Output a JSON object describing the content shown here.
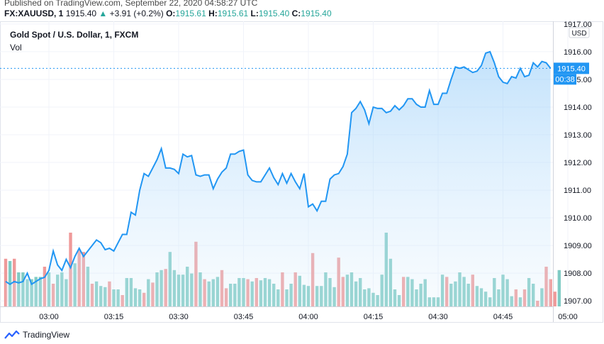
{
  "header": {
    "published": "Published on TradingView.com, September 22, 2020 04:58:27 UTC",
    "symbol": "FX:XAUUSD, 1",
    "last": "1915.40",
    "change_arrow": "▲",
    "change": "+3.91 (+0.2%)",
    "open_label": "O:",
    "open": "1915.61",
    "high_label": "H:",
    "high": "1915.61",
    "low_label": "L:",
    "low": "1915.40",
    "close_label": "C:",
    "close": "1915.40"
  },
  "chart_title": "Gold Spot / U.S. Dollar, 1, FXCM",
  "volume_label": "Vol",
  "currency_label": "USD",
  "price_tag": "1915.40",
  "countdown_tag": "00:38",
  "footer": {
    "brand": "TradingView"
  },
  "colors": {
    "line": "#2196f3",
    "area": "#bbdefb",
    "vol_up": "#80cbc4",
    "vol_down": "#ef9a9a",
    "tag": "#2196f3"
  },
  "chart_data": {
    "type": "area",
    "title": "Gold Spot / U.S. Dollar, 1, FXCM",
    "x_ticks": [
      "03:00",
      "03:15",
      "03:30",
      "03:45",
      "04:00",
      "04:15",
      "04:30",
      "04:45",
      "05:00"
    ],
    "y_ticks": [
      "1907.00",
      "1908.00",
      "1909.00",
      "1910.00",
      "1911.00",
      "1912.00",
      "1913.00",
      "1914.00",
      "1915.00",
      "1916.00",
      "1917.00"
    ],
    "ylim": [
      1906.8,
      1917.1
    ],
    "x_range_minutes": [
      -10,
      110
    ],
    "x_tick_minutes": [
      0,
      15,
      30,
      45,
      60,
      75,
      90,
      105,
      120
    ],
    "start_minute": -10,
    "grid": true,
    "price": [
      1907.7,
      1907.6,
      1907.7,
      1907.65,
      1907.7,
      1908.0,
      1907.6,
      1907.7,
      1907.8,
      1907.85,
      1908.1,
      1908.8,
      1908.3,
      1908.1,
      1908.5,
      1908.2,
      1908.6,
      1908.9,
      1908.6,
      1908.8,
      1909.0,
      1909.2,
      1909.1,
      1908.85,
      1908.9,
      1908.8,
      1909.1,
      1909.4,
      1909.4,
      1910.2,
      1910.1,
      1911.0,
      1911.6,
      1911.5,
      1911.8,
      1912.1,
      1912.5,
      1911.8,
      1911.8,
      1911.75,
      1911.6,
      1912.3,
      1912.2,
      1912.25,
      1911.55,
      1911.5,
      1911.55,
      1911.55,
      1911.05,
      1911.4,
      1911.65,
      1911.8,
      1912.3,
      1912.3,
      1912.4,
      1912.45,
      1911.55,
      1911.35,
      1911.3,
      1911.3,
      1911.55,
      1911.8,
      1911.45,
      1911.2,
      1911.6,
      1911.25,
      1911.6,
      1911.3,
      1911.05,
      1911.6,
      1910.4,
      1910.5,
      1910.25,
      1910.6,
      1910.6,
      1911.4,
      1911.55,
      1911.6,
      1911.85,
      1912.3,
      1913.8,
      1913.95,
      1914.2,
      1913.9,
      1913.4,
      1914.0,
      1913.95,
      1913.95,
      1913.8,
      1913.85,
      1914.05,
      1913.9,
      1914.05,
      1914.3,
      1914.3,
      1914.1,
      1914.0,
      1914.0,
      1914.6,
      1914.1,
      1914.1,
      1914.5,
      1914.5,
      1915.0,
      1915.45,
      1915.4,
      1915.45,
      1915.35,
      1915.25,
      1915.3,
      1915.5,
      1915.95,
      1916.0,
      1915.6,
      1915.1,
      1914.9,
      1914.85,
      1915.1,
      1915.05,
      1915.4,
      1915.1,
      1915.15,
      1915.6,
      1915.45,
      1915.65,
      1915.6,
      1915.4
    ],
    "volume": [
      -0.42,
      0.4,
      -0.42,
      0.3,
      0.3,
      0.24,
      0.24,
      0.26,
      0.26,
      -0.35,
      0.3,
      -0.2,
      0.28,
      0.3,
      0.24,
      -0.65,
      0.38,
      -0.5,
      -0.48,
      0.35,
      -0.2,
      0.22,
      0.18,
      0.17,
      -0.22,
      0.15,
      0.15,
      -0.1,
      0.25,
      0.25,
      0.16,
      0.15,
      -0.12,
      0.24,
      -0.21,
      0.3,
      0.32,
      -0.33,
      0.48,
      0.32,
      0.28,
      0.28,
      0.35,
      0.29,
      -0.57,
      0.3,
      -0.24,
      0.22,
      0.24,
      0.26,
      -0.32,
      -0.16,
      0.2,
      0.2,
      0.25,
      0.25,
      -0.24,
      0.22,
      -0.25,
      0.23,
      0.25,
      0.24,
      0.2,
      0.15,
      -0.3,
      0.15,
      0.2,
      -0.3,
      0.27,
      0.19,
      0.18,
      -0.47,
      0.18,
      0.18,
      0.3,
      0.25,
      0.17,
      -0.43,
      -0.26,
      0.28,
      0.3,
      0.22,
      0.25,
      0.15,
      0.16,
      0.12,
      0.1,
      0.28,
      0.65,
      0.42,
      0.15,
      0.1,
      -0.26,
      0.26,
      0.24,
      0.15,
      0.2,
      0.24,
      0.08,
      0.08,
      0.08,
      0.28,
      -0.26,
      0.2,
      0.22,
      0.3,
      0.26,
      0.2,
      -0.28,
      0.18,
      0.16,
      0.13,
      0.08,
      0.25,
      0.15,
      0.28,
      0.24,
      0.09,
      -0.15,
      0.08,
      -0.15,
      0.25,
      0.2,
      -0.05,
      0.16,
      -0.35,
      -0.24,
      -0.13,
      0.32
    ],
    "last_price": 1915.4
  }
}
